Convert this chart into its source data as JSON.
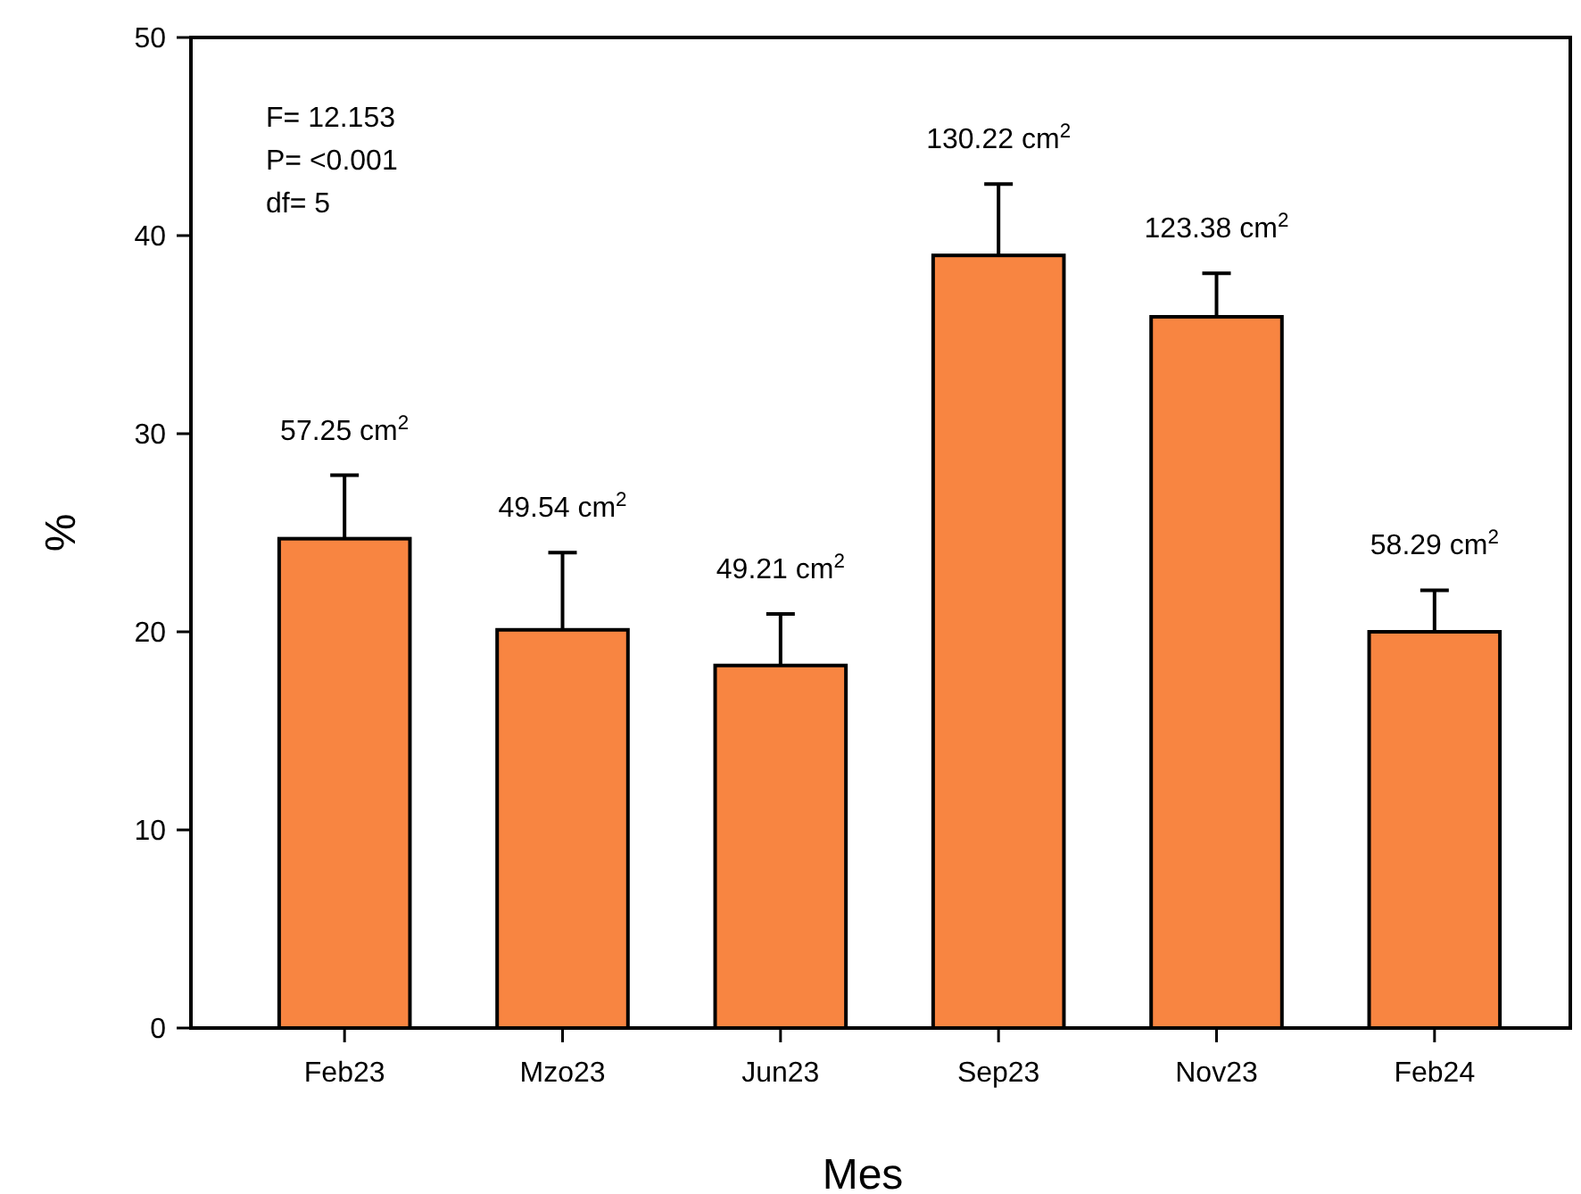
{
  "chart_data": {
    "type": "bar",
    "xlabel": "Mes",
    "ylabel": "%",
    "categories": [
      "Feb23",
      "Mzo23",
      "Jun23",
      "Sep23",
      "Nov23",
      "Feb24"
    ],
    "values": [
      24.7,
      20.1,
      18.3,
      39.0,
      35.9,
      20.0
    ],
    "errors": [
      [
        24.7,
        27.9
      ],
      [
        20.1,
        24.0
      ],
      [
        18.3,
        20.9
      ],
      [
        39.0,
        42.6
      ],
      [
        35.9,
        38.1
      ],
      [
        20.0,
        22.1
      ]
    ],
    "color": "#f88541",
    "ylim": [
      0,
      50
    ],
    "yticks": [
      0,
      10,
      20,
      30,
      40,
      50
    ],
    "annotations": [
      "F= 12.153",
      "P= <0.001",
      "df= 5",
      {
        "text": "57.25 cm$^{2}$",
        "x": "Feb23",
        "y": 27.9
      },
      {
        "text": "49.54 cm$^{2}$",
        "x": "Mzo23",
        "y": 24.0
      },
      {
        "text": "49.21 cm$^{2}$",
        "x": "Jun23",
        "y": 20.9
      },
      {
        "text": "130.22 cm$^{2}$",
        "x": "Sep23",
        "y": 42.6
      },
      {
        "text": "123.38 cm$^{2}$",
        "x": "Nov23",
        "y": 38.1
      },
      {
        "text": "58.29 cm$^{2}$",
        "x": "Feb24",
        "y": 22.1
      }
    ]
  }
}
